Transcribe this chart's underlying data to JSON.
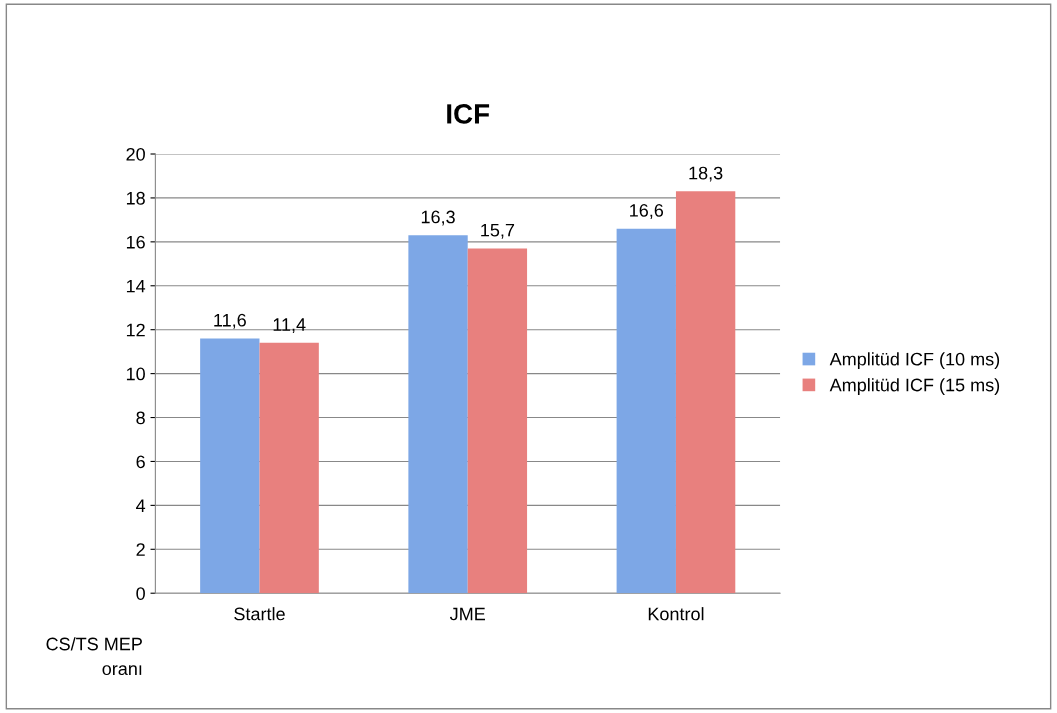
{
  "chart_data": {
    "type": "bar",
    "title": "ICF",
    "ylabel": "CS/TS MEP\noranı",
    "categories": [
      "Startle",
      "JME",
      "Kontrol"
    ],
    "series": [
      {
        "name": "Amplitüd ICF (10 ms)",
        "color": "#7da7e6",
        "values": [
          11.6,
          16.3,
          16.6
        ],
        "value_labels": [
          "11,6",
          "16,3",
          "16,6"
        ]
      },
      {
        "name": "Amplitüd ICF (15 ms)",
        "color": "#e8807e",
        "values": [
          11.4,
          15.7,
          18.3
        ],
        "value_labels": [
          "11,4",
          "15,7",
          "18,3"
        ]
      }
    ],
    "ylim": [
      0,
      20
    ],
    "yticks": [
      0,
      2,
      4,
      6,
      8,
      10,
      12,
      14,
      16,
      18,
      20
    ],
    "grid": "y",
    "legend": "right"
  }
}
